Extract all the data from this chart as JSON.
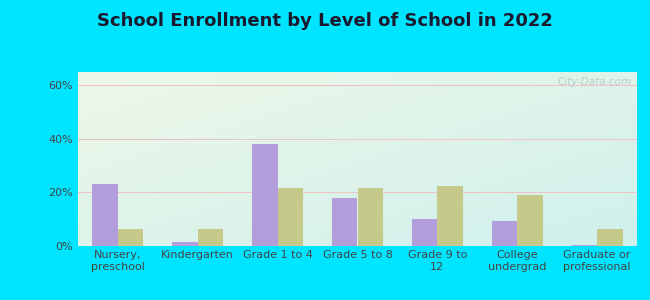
{
  "title": "School Enrollment by Level of School in 2022",
  "categories": [
    "Nursery,\npreschool",
    "Kindergarten",
    "Grade 1 to 4",
    "Grade 5 to 8",
    "Grade 9 to\n12",
    "College\nundergrad",
    "Graduate or\nprofessional"
  ],
  "zip_values": [
    23.0,
    1.5,
    38.0,
    18.0,
    10.0,
    9.5,
    0.3
  ],
  "tn_values": [
    6.5,
    6.5,
    21.5,
    21.5,
    22.5,
    19.0,
    6.5
  ],
  "zip_color": "#b39ddb",
  "tn_color": "#c5c98a",
  "background_outer": "#00e5ff",
  "background_inner_top_left": "#edf7e8",
  "background_inner_bottom_right": "#d0f0ec",
  "ylim": [
    0,
    65
  ],
  "yticks": [
    0,
    20,
    40,
    60
  ],
  "ytick_labels": [
    "0%",
    "20%",
    "40%",
    "60%"
  ],
  "grid_color": "#e0e0e0",
  "watermark_text": "City-Data.com",
  "title_fontsize": 13,
  "tick_fontsize": 8,
  "legend_fontsize": 9,
  "bar_width": 0.32
}
